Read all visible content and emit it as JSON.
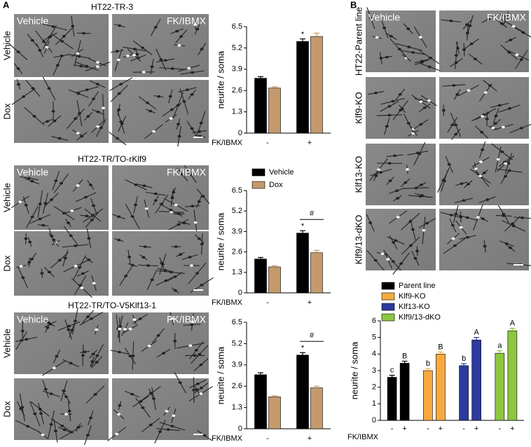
{
  "panel_a": {
    "label": "A",
    "rows": [
      {
        "title": "HT22-TR-3",
        "col_labels": [
          "Vehicle",
          "FK/IBMX"
        ],
        "row_labels": [
          "Vehicle",
          "Dox"
        ]
      },
      {
        "title": "HT22-TR/TO-rKlf9",
        "col_labels": [
          "Vehicle",
          "FK/IBMX"
        ],
        "row_labels": [
          "Vehicle",
          "Dox"
        ]
      },
      {
        "title": "HT22-TR/TO-V5Klf13-1",
        "col_labels": [
          "Vehicle",
          "FK/IBMX"
        ],
        "row_labels": [
          "Vehicle",
          "Dox"
        ]
      }
    ]
  },
  "panel_b": {
    "label": "B",
    "col_labels": [
      "Vehicle",
      "FK/IBMX"
    ],
    "row_labels": [
      "HT22-Parent line",
      "Klf9-KO",
      "Klf13-KO",
      "Klf9/13-dKO"
    ]
  },
  "chart_data": [
    {
      "type": "bar",
      "y_label": "neurite / soma",
      "x_label": "FK/IBMX",
      "categories": [
        "-",
        "+"
      ],
      "ylim": [
        0,
        6.5
      ],
      "yticks": [
        0,
        1.3,
        2.6,
        3.9,
        5.2,
        6.5
      ],
      "series": [
        {
          "color": "#000000",
          "values": [
            3.35,
            5.6
          ],
          "errors": [
            0.1,
            0.15
          ],
          "marks": [
            null,
            "*"
          ]
        },
        {
          "color": "#c49a6c",
          "values": [
            2.75,
            5.9
          ],
          "errors": [
            0.08,
            0.2
          ]
        }
      ]
    },
    {
      "type": "bar",
      "y_label": "neurite / soma",
      "x_label": "FK/IBMX",
      "categories": [
        "-",
        "+"
      ],
      "ylim": [
        0,
        6.5
      ],
      "yticks": [
        0,
        1.3,
        2.6,
        3.9,
        5.2,
        6.5
      ],
      "series": [
        {
          "name": "Vehicle",
          "color": "#000000",
          "values": [
            2.15,
            3.8
          ],
          "errors": [
            0.1,
            0.15
          ],
          "marks": [
            null,
            "*"
          ]
        },
        {
          "name": "Dox",
          "color": "#c49a6c",
          "values": [
            1.65,
            2.55
          ],
          "errors": [
            0.08,
            0.15
          ]
        }
      ],
      "bracket": {
        "text": "#",
        "category": 1
      }
    },
    {
      "type": "bar",
      "y_label": "neurite / soma",
      "x_label": "FK/IBMX",
      "categories": [
        "-",
        "+"
      ],
      "ylim": [
        0,
        6.5
      ],
      "yticks": [
        0,
        1.3,
        2.6,
        3.9,
        5.2,
        6.5
      ],
      "series": [
        {
          "color": "#000000",
          "values": [
            3.3,
            4.5
          ],
          "errors": [
            0.12,
            0.15
          ],
          "marks": [
            null,
            "*"
          ]
        },
        {
          "color": "#c49a6c",
          "values": [
            1.95,
            2.5
          ],
          "errors": [
            0.07,
            0.1
          ]
        }
      ],
      "bracket": {
        "text": "#",
        "category": 1
      }
    },
    {
      "type": "bar",
      "grouping": "series",
      "y_label": "neurite / soma",
      "x_label": "FK/IBMX",
      "categories": [
        "-",
        "+"
      ],
      "ylim": [
        0,
        6
      ],
      "yticks": [
        0,
        1,
        2,
        3,
        4,
        5,
        6
      ],
      "series": [
        {
          "name": "Parent line",
          "color": "#000000",
          "values": [
            2.6,
            3.45
          ],
          "errors": [
            0.12,
            0.12
          ],
          "letters": [
            "c",
            "B"
          ]
        },
        {
          "name": "Klf9-KO",
          "color": "#f7a940",
          "values": [
            3.0,
            4.0
          ],
          "errors": [
            0.12,
            0.12
          ],
          "letters": [
            "b",
            "B"
          ]
        },
        {
          "name": "Klf13-KO",
          "color": "#2b3a9e",
          "values": [
            3.3,
            4.85
          ],
          "errors": [
            0.12,
            0.15
          ],
          "letters": [
            "b",
            "A"
          ]
        },
        {
          "name": "Klf9/13-dKO",
          "color": "#8dc63f",
          "values": [
            4.05,
            5.4
          ],
          "errors": [
            0.15,
            0.15
          ],
          "letters": [
            "a",
            "A"
          ]
        }
      ]
    }
  ]
}
